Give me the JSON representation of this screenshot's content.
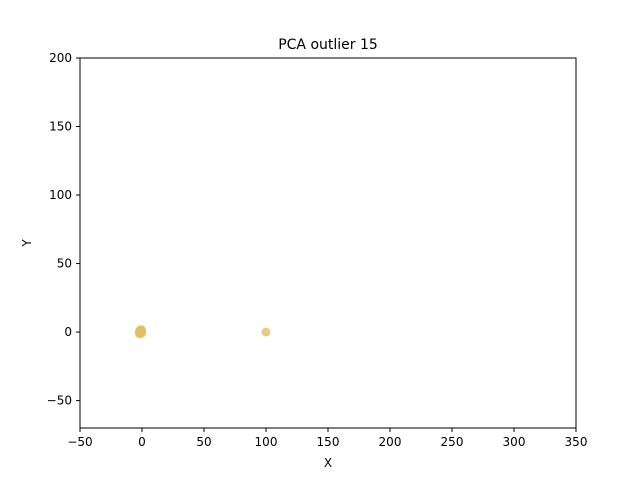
{
  "chart_data": {
    "type": "scatter",
    "title": "PCA outlier 15",
    "xlabel": "X",
    "ylabel": "Y",
    "xlim": [
      -50,
      350
    ],
    "ylim": [
      -70,
      200
    ],
    "xticks": [
      -50,
      0,
      50,
      100,
      150,
      200,
      250,
      300,
      350
    ],
    "yticks": [
      -50,
      0,
      50,
      100,
      150,
      200
    ],
    "grid": false,
    "marker_color": "#e1c161",
    "series": [
      {
        "points": [
          {
            "x": -1.8,
            "y": 0.8
          },
          {
            "x": -1.2,
            "y": -0.6
          },
          {
            "x": -0.5,
            "y": 0.3
          },
          {
            "x": -2.0,
            "y": -1.0
          },
          {
            "x": -0.9,
            "y": 1.2
          },
          {
            "x": -1.5,
            "y": 0.0
          },
          {
            "x": -0.3,
            "y": -0.9
          },
          {
            "x": -1.0,
            "y": 0.5
          },
          {
            "x": -2.2,
            "y": 0.2
          },
          {
            "x": -0.7,
            "y": -0.3
          },
          {
            "x": -1.4,
            "y": 1.5
          },
          {
            "x": -0.2,
            "y": 0.9
          },
          {
            "x": -1.7,
            "y": -1.3
          },
          {
            "x": -1.1,
            "y": -0.1
          },
          {
            "x": -0.6,
            "y": 1.8
          },
          {
            "x": 100,
            "y": 0
          }
        ]
      }
    ]
  }
}
